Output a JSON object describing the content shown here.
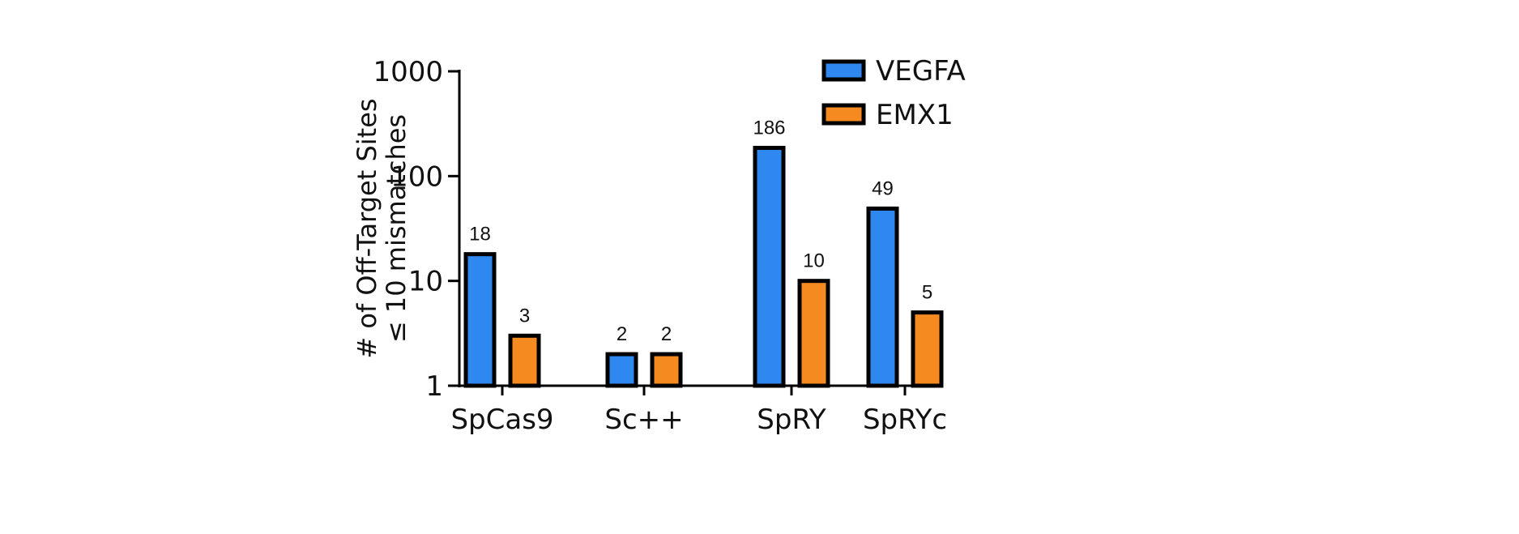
{
  "chart_data": {
    "type": "bar",
    "title": "",
    "xlabel": "",
    "ylabel": "# of Off-Target Sites",
    "ylabel_line2": "≤ 10 mismatches",
    "yscale": "log",
    "ylim": [
      1,
      1000
    ],
    "yticks": [
      1,
      10,
      100,
      1000
    ],
    "ytick_labels": [
      "1",
      "10",
      "100",
      "1000"
    ],
    "categories": [
      "SpCas9",
      "Sc++",
      "SpRY",
      "SpRYc"
    ],
    "series": [
      {
        "name": "VEGFA",
        "color": "#2f87f0",
        "values": [
          18,
          2,
          186,
          49
        ],
        "labels": [
          "18",
          "2",
          "186",
          "49"
        ]
      },
      {
        "name": "EMX1",
        "color": "#f58a20",
        "values": [
          3,
          2,
          10,
          5
        ],
        "labels": [
          "3",
          "2",
          "10",
          "5"
        ]
      }
    ],
    "legend_position": "top-right",
    "grid": false
  }
}
